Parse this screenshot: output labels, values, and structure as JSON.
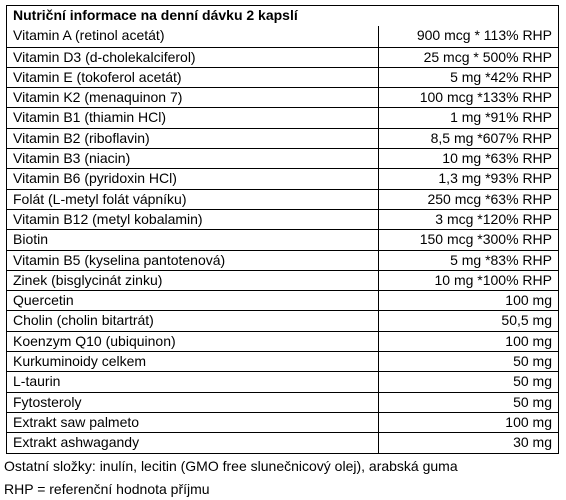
{
  "header": "Nutriční informace na denní dávku 2 kapslí",
  "rows": [
    {
      "name": "Vitamin A (retinol acetát)",
      "value": "900 mcg * 113% RHP"
    },
    {
      "name": "Vitamin D3 (d-cholekalciferol)",
      "value": "25 mcg * 500% RHP"
    },
    {
      "name": "Vitamin E (tokoferol acetát)",
      "value": "5 mg *42% RHP"
    },
    {
      "name": "Vitamin K2 (menaquinon 7)",
      "value": "100 mcg *133% RHP"
    },
    {
      "name": "Vitamin B1 (thiamin HCl)",
      "value": "1 mg *91% RHP"
    },
    {
      "name": "Vitamin B2 (riboflavin)",
      "value": "8,5 mg *607% RHP"
    },
    {
      "name": "Vitamin B3 (niacin)",
      "value": "10 mg *63% RHP"
    },
    {
      "name": "Vitamin B6 (pyridoxin HCl)",
      "value": "1,3 mg *93% RHP"
    },
    {
      "name": "Folát (L-metyl folát vápníku)",
      "value": "250 mcg *63% RHP"
    },
    {
      "name": "Vitamin B12 (metyl kobalamin)",
      "value": "3 mcg *120% RHP"
    },
    {
      "name": "Biotin",
      "value": "150 mcg *300% RHP"
    },
    {
      "name": "Vitamin B5 (kyselina pantotenová)",
      "value": "5 mg *83% RHP"
    },
    {
      "name": "Zinek (bisglycinát zinku)",
      "value": "10 mg *100% RHP"
    },
    {
      "name": "Quercetin",
      "value": "100 mg"
    },
    {
      "name": "Cholin (cholin bitartrát)",
      "value": "50,5 mg"
    },
    {
      "name": "Koenzym Q10 (ubiquinon)",
      "value": "100 mg"
    },
    {
      "name": "Kurkuminoidy celkem",
      "value": "50 mg"
    },
    {
      "name": "L-taurin",
      "value": "50 mg"
    },
    {
      "name": "Fytosteroly",
      "value": "50 mg"
    },
    {
      "name": "Extrakt saw palmeto",
      "value": "100 mg"
    },
    {
      "name": "Extrakt ashwagandy",
      "value": "30 mg"
    }
  ],
  "notes": {
    "other_ingredients": "Ostatní složky: inulín, lecitin (GMO free slunečnicový olej), arabská guma",
    "rhp": "RHP = referenční hodnota příjmu"
  }
}
